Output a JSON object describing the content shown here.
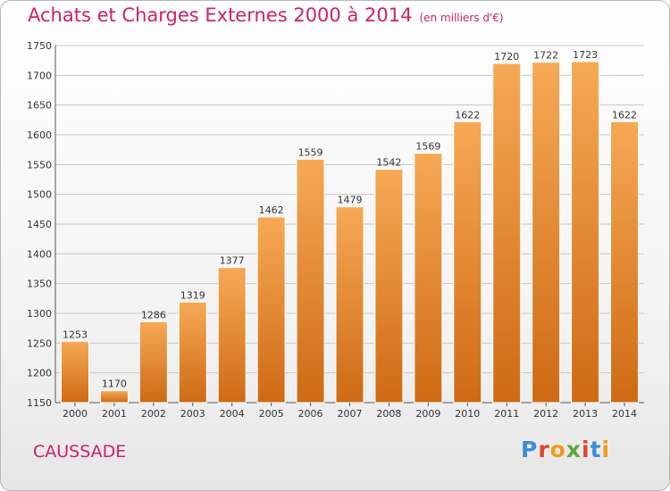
{
  "header": {
    "title": "Achats et Charges Externes 2000 à 2014",
    "subtitle": "(en milliers d'€)"
  },
  "footer": {
    "place": "CAUSSADE",
    "logo_text": "Proxiti"
  },
  "colors": {
    "title": "#cc2266",
    "bar_top": "#f6a955",
    "bar_bottom": "#cf6a14",
    "logo_letters": [
      "#3b8fd6",
      "#e0462c",
      "#f29a1d",
      "#5aa73c",
      "#e0462c",
      "#3b8fd6",
      "#f29a1d"
    ]
  },
  "chart_data": {
    "type": "bar",
    "categories": [
      "2000",
      "2001",
      "2002",
      "2003",
      "2004",
      "2005",
      "2006",
      "2007",
      "2008",
      "2009",
      "2010",
      "2011",
      "2012",
      "2013",
      "2014"
    ],
    "values": [
      1253,
      1170,
      1286,
      1319,
      1377,
      1462,
      1559,
      1479,
      1542,
      1569,
      1622,
      1720,
      1722,
      1723,
      1622
    ],
    "title": "Achats et Charges Externes 2000 à 2014",
    "subtitle": "(en milliers d'€)",
    "xlabel": "",
    "ylabel": "",
    "ylim": [
      1150,
      1750
    ],
    "yticks": [
      1150,
      1200,
      1250,
      1300,
      1350,
      1400,
      1450,
      1500,
      1550,
      1600,
      1650,
      1700,
      1750
    ],
    "grid": true,
    "data_labels": true
  }
}
